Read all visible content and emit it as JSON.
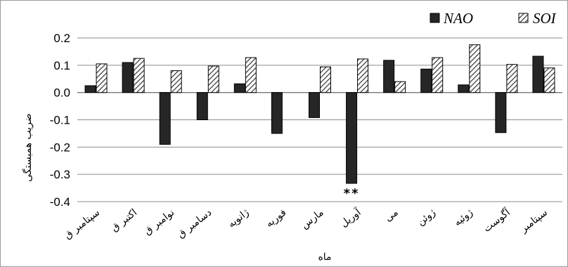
{
  "chart_data": {
    "type": "bar",
    "title": "",
    "xlabel": "ماه",
    "ylabel": "ضریب همبستگی",
    "ylim": [
      -0.4,
      0.2
    ],
    "yticks": [
      "0.2",
      "0.1",
      "0.0",
      "-0.1",
      "-0.2",
      "-0.3",
      "-0.4"
    ],
    "grid": true,
    "legend_position": "top-right",
    "categories": [
      "سپتامبر ق",
      "اکتبر ق",
      "نوامبر ق",
      "دسامبر ق",
      "ژانویه",
      "فوریه",
      "مارس",
      "آوریل",
      "می",
      "ژوئن",
      "ژوئیه",
      "آگوست",
      "سپتامبر"
    ],
    "series": [
      {
        "name": "NAO",
        "pattern": "solid",
        "color": "#262626",
        "values": [
          0.025,
          0.11,
          -0.19,
          -0.1,
          0.032,
          -0.15,
          -0.092,
          -0.333,
          0.118,
          0.086,
          0.028,
          -0.147,
          0.133
        ]
      },
      {
        "name": "SOI",
        "pattern": "hatched",
        "color": "#ffffff",
        "values": [
          0.105,
          0.125,
          0.08,
          0.097,
          0.128,
          null,
          0.094,
          0.123,
          0.04,
          0.128,
          0.175,
          0.103,
          0.09
        ]
      }
    ],
    "annotations": [
      {
        "category_index": 7,
        "series": "NAO",
        "text": "**"
      }
    ]
  }
}
